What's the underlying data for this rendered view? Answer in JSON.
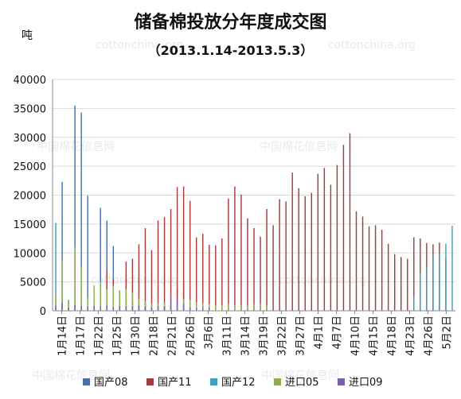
{
  "chart_data": {
    "type": "bar",
    "title": "储备棉投放分年度成交图",
    "subtitle": "（2013.1.14-2013.5.3）",
    "unit_label": "吨",
    "watermarks": [
      "cottonchina.org",
      "中国棉花信息网"
    ],
    "ylim": [
      0,
      40000
    ],
    "yticks": [
      0,
      5000,
      10000,
      15000,
      20000,
      25000,
      30000,
      35000,
      40000
    ],
    "grid": true,
    "legend_position": "bottom",
    "x_tick_labels": [
      "1月14日",
      "1月17日",
      "1月22日",
      "1月25日",
      "1月30日",
      "2月18日",
      "2月21日",
      "2月26日",
      "3月6日",
      "3月11日",
      "3月14日",
      "3月19日",
      "3月22日",
      "3月27日",
      "4月1日",
      "4月7日",
      "4月10日",
      "4月15日",
      "4月18日",
      "4月23日",
      "4月26日",
      "5月2日"
    ],
    "series": [
      {
        "name": "国产08",
        "color": "#4a6fa5",
        "values": [
          0,
          22300,
          1800,
          35500,
          34300,
          19900,
          1200,
          17800,
          15600,
          11200,
          1500,
          1800,
          1500,
          1200,
          1500,
          0,
          0,
          800,
          600,
          4000,
          5000,
          1500,
          1500,
          1500,
          1000,
          600,
          0,
          0,
          0,
          0,
          0,
          0,
          0,
          0,
          0,
          0,
          0,
          0,
          0,
          0,
          0,
          0,
          0,
          0,
          0,
          0,
          0,
          0,
          0,
          0,
          0,
          0,
          0,
          0,
          0,
          0,
          0,
          0,
          0,
          0,
          0,
          0,
          0
        ]
      },
      {
        "name": "国产11",
        "color": "#a33c3c",
        "values": [
          0,
          0,
          0,
          0,
          0,
          0,
          0,
          0,
          7000,
          5500,
          3500,
          8500,
          9000,
          11500,
          14300,
          10500,
          15600,
          16200,
          17600,
          21400,
          21500,
          19000,
          12700,
          13300,
          11400,
          11300,
          12500,
          19400,
          21500,
          20100,
          16000,
          14300,
          12800,
          17600,
          14800,
          19300,
          18900,
          23900,
          21200,
          19800,
          20400,
          23700,
          24700,
          21800,
          25200,
          28700,
          30700,
          17200,
          16300,
          14600,
          14800,
          14000,
          11600,
          9800,
          9300,
          9000,
          12700,
          12500,
          11700,
          11500,
          11800,
          9000,
          0
        ]
      },
      {
        "name": "国产12",
        "color": "#3f9fbf",
        "values": [
          15200,
          0,
          0,
          0,
          0,
          0,
          0,
          0,
          0,
          0,
          0,
          0,
          0,
          0,
          0,
          0,
          0,
          0,
          0,
          0,
          0,
          0,
          0,
          0,
          0,
          0,
          0,
          0,
          0,
          0,
          0,
          0,
          0,
          0,
          0,
          0,
          0,
          0,
          0,
          0,
          0,
          0,
          0,
          0,
          0,
          0,
          0,
          0,
          0,
          0,
          0,
          0,
          0,
          0,
          0,
          0,
          2500,
          6500,
          7700,
          9500,
          10000,
          11600,
          14700
        ]
      },
      {
        "name": "进口05",
        "color": "#8fac52",
        "values": [
          2800,
          8600,
          1900,
          11200,
          7600,
          2300,
          4400,
          5000,
          3700,
          4300,
          3400,
          3700,
          3100,
          2100,
          1700,
          1200,
          1300,
          1500,
          1100,
          1600,
          2100,
          1900,
          1500,
          1400,
          1200,
          1000,
          1000,
          1200,
          1000,
          1000,
          1000,
          1100,
          1200,
          1000,
          0,
          0,
          0,
          0,
          0,
          0,
          0,
          0,
          0,
          0,
          0,
          0,
          0,
          0,
          0,
          0,
          0,
          0,
          0,
          0,
          0,
          0,
          0,
          0,
          0,
          0,
          0,
          0,
          0
        ]
      },
      {
        "name": "进口09",
        "color": "#7b5ea8",
        "values": [
          900,
          1400,
          600,
          1000,
          800,
          700,
          900,
          800,
          1000,
          600,
          800,
          700,
          700,
          900,
          700,
          600,
          800,
          700,
          2300,
          1800,
          1200,
          600,
          500,
          700,
          600,
          0,
          0,
          0,
          0,
          0,
          0,
          0,
          0,
          0,
          0,
          0,
          0,
          0,
          0,
          0,
          0,
          0,
          0,
          0,
          0,
          0,
          0,
          0,
          0,
          0,
          0,
          0,
          0,
          0,
          0,
          0,
          0,
          0,
          0,
          0,
          0,
          0,
          0
        ]
      }
    ]
  }
}
